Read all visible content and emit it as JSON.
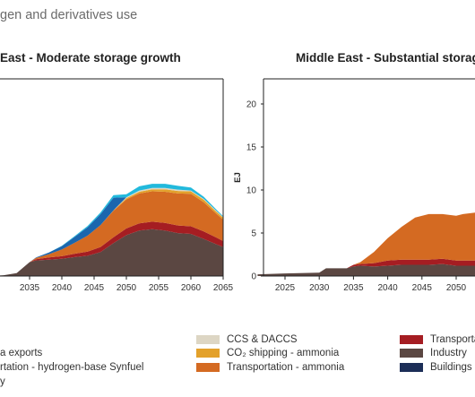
{
  "heading": "gen and derivatives use",
  "colors": {
    "ccs_daccs": "#ddd6c4",
    "co2_shipping_ammonia": "#e3a12b",
    "transportation_ammonia": "#d46a22",
    "transportation_red": "#a51d22",
    "industry": "#5b4742",
    "buildings": "#1c2e57",
    "exports": "#1b66ae",
    "synfuel": "#22b9dc"
  },
  "legend": {
    "col1": [
      "a exports",
      "rtation - hydrogen-base Synfuel",
      "y"
    ],
    "col2": [
      "CCS & DACCS",
      "CO₂ shipping - ammonia",
      "Transportation - ammonia"
    ],
    "col3": [
      "Transporta",
      "Industry",
      "Buildings"
    ]
  },
  "chart_data": [
    {
      "type": "area",
      "title": "East - Moderate storage growth",
      "x": [
        2029,
        2031,
        2033,
        2035,
        2036,
        2038,
        2040,
        2042,
        2044,
        2046,
        2048,
        2050,
        2052,
        2054,
        2056,
        2058,
        2060,
        2062,
        2064,
        2065
      ],
      "xticks": [
        "2035",
        "2040",
        "2045",
        "2050",
        "2055",
        "2060",
        "2065"
      ],
      "series": [
        {
          "color_key": "industry",
          "values": [
            0,
            0.2,
            0.7,
            3.3,
            3.7,
            3.9,
            4.1,
            4.5,
            4.8,
            5.7,
            7.8,
            9.7,
            10.8,
            11.1,
            10.8,
            10.2,
            10.0,
            8.8,
            7.5,
            6.9
          ]
        },
        {
          "color_key": "transportation_red",
          "values": [
            0,
            0,
            0,
            0,
            0.3,
            0.5,
            0.6,
            0.8,
            1.0,
            1.2,
            1.4,
            1.6,
            1.7,
            1.8,
            1.8,
            1.8,
            1.8,
            1.8,
            1.6,
            1.4
          ]
        },
        {
          "color_key": "transportation_ammonia",
          "values": [
            0,
            0,
            0,
            0,
            0.3,
            0.8,
            1.6,
            2.6,
            3.8,
            5.2,
            6.3,
            6.9,
            7.1,
            7.2,
            7.4,
            7.6,
            7.7,
            6.9,
            5.6,
            5.1
          ]
        },
        {
          "color_key": "co2_shipping_ammonia",
          "values": [
            0,
            0,
            0,
            0,
            0,
            0,
            0,
            0,
            0,
            0,
            0.1,
            0.3,
            0.4,
            0.5,
            0.6,
            0.6,
            0.6,
            0.6,
            0.5,
            0.5
          ]
        },
        {
          "color_key": "ccs_daccs",
          "values": [
            0,
            0,
            0,
            0,
            0,
            0,
            0,
            0,
            0,
            0,
            0,
            0.2,
            0.3,
            0.3,
            0.3,
            0.3,
            0.2,
            0.2,
            0.2,
            0.1
          ]
        },
        {
          "color_key": "exports",
          "values": [
            0,
            0,
            0,
            0,
            0.1,
            0.4,
            0.8,
            1.4,
            2.0,
            2.6,
            3.0,
            0,
            0,
            0,
            0,
            0,
            0,
            0,
            0,
            0
          ]
        },
        {
          "color_key": "synfuel",
          "values": [
            0,
            0,
            0,
            0,
            0,
            0,
            0.1,
            0.2,
            0.3,
            0.4,
            0.6,
            0.7,
            1.0,
            1.0,
            1.0,
            0.9,
            0.7,
            0.5,
            0.3,
            0.2
          ]
        }
      ]
    },
    {
      "type": "area",
      "title": "Middle East - Substantial storag",
      "ylabel": "EJ",
      "ylim": [
        0,
        23
      ],
      "yticks": [
        "0",
        "5",
        "10",
        "15",
        "20"
      ],
      "x": [
        2021,
        2025,
        2030,
        2031,
        2034,
        2035,
        2036,
        2038,
        2040,
        2042,
        2044,
        2046,
        2048,
        2050,
        2051,
        2054
      ],
      "xticks": [
        "2025",
        "2030",
        "2035",
        "2040",
        "2045",
        "2050"
      ],
      "series": [
        {
          "color_key": "industry",
          "values": [
            0.2,
            0.3,
            0.4,
            0.9,
            0.9,
            1.1,
            1.2,
            1.1,
            1.2,
            1.3,
            1.3,
            1.3,
            1.4,
            1.2,
            1.2,
            1.2
          ]
        },
        {
          "color_key": "transportation_red",
          "values": [
            0,
            0,
            0,
            0,
            0,
            0.2,
            0.2,
            0.4,
            0.6,
            0.6,
            0.6,
            0.6,
            0.6,
            0.6,
            0.6,
            0.6
          ]
        },
        {
          "color_key": "transportation_ammonia",
          "values": [
            0,
            0,
            0,
            0,
            0,
            0,
            0.2,
            1.3,
            2.6,
            3.8,
            4.9,
            5.3,
            5.2,
            5.2,
            5.4,
            5.7
          ]
        }
      ]
    }
  ]
}
